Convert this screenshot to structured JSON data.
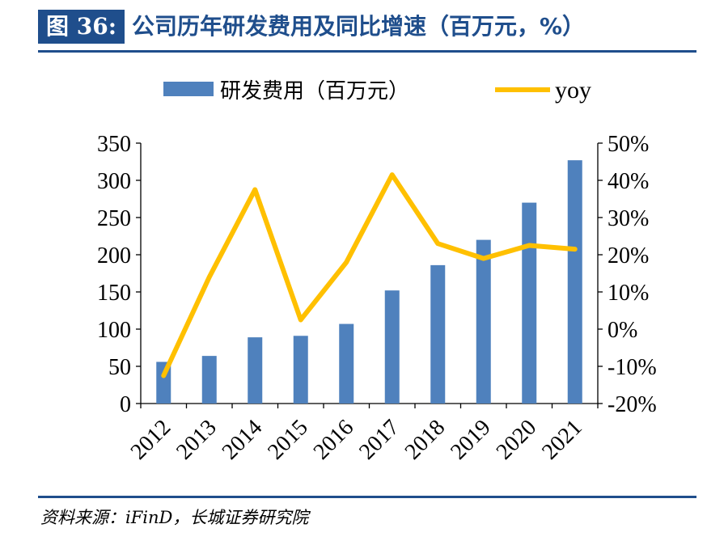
{
  "header": {
    "figure_label": "图 36:",
    "title": "公司历年研发费用及同比增速（百万元，%）"
  },
  "source": "资料来源：iFinD，长城证券研究院",
  "colors": {
    "bar": "#4f81bd",
    "line": "#ffc000",
    "accent": "#1f4e8c"
  },
  "chart_data": {
    "type": "bar",
    "categories": [
      "2012",
      "2013",
      "2014",
      "2015",
      "2016",
      "2017",
      "2018",
      "2019",
      "2020",
      "2021"
    ],
    "series": [
      {
        "name": "研发费用（百万元）",
        "type": "bar",
        "axis": "left",
        "values": [
          56,
          64,
          89,
          91,
          107,
          152,
          186,
          220,
          270,
          327
        ]
      },
      {
        "name": "yoy",
        "type": "line",
        "axis": "right",
        "values": [
          -12.5,
          14,
          37.5,
          2.5,
          18,
          41.5,
          23,
          19,
          22.5,
          21.5
        ]
      }
    ],
    "left_axis": {
      "ylim": [
        0,
        350
      ],
      "ticks": [
        "0",
        "50",
        "100",
        "150",
        "200",
        "250",
        "300",
        "350"
      ]
    },
    "right_axis": {
      "ylim": [
        -20,
        50
      ],
      "ticks": [
        "-20%",
        "-10%",
        "0%",
        "10%",
        "20%",
        "30%",
        "40%",
        "50%"
      ]
    },
    "legend": {
      "position": "top"
    },
    "grid": false
  }
}
